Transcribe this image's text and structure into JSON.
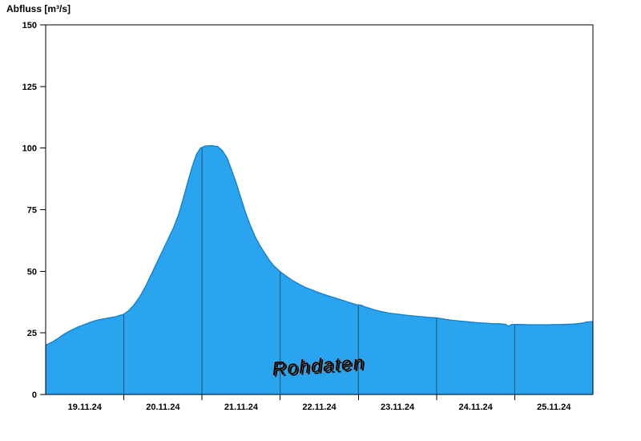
{
  "title": "Abfluss [m³/s]",
  "watermark": "Rohdaten",
  "colors": {
    "area_fill": "#2aa4ef",
    "area_stroke": "#0d7fd0",
    "boundary_line": "#1f4e79",
    "axis": "#000000",
    "watermark_fill": "#ffffff",
    "watermark_stroke": "#8f8f8f",
    "watermark_shadow": "rgba(90,90,90,0.55)"
  },
  "chart_data": {
    "type": "area",
    "title": "",
    "ylabel": "Abfluss [m³/s]",
    "xlabel": "",
    "x_unit": "days (19.11.24 00:00 = 0)",
    "x_domain": [
      0,
      7
    ],
    "ylim": [
      0,
      150
    ],
    "y_ticks": [
      0,
      25,
      50,
      75,
      100,
      125,
      150
    ],
    "day_boundaries": [
      1,
      2,
      3,
      4,
      5,
      6
    ],
    "x_tick_labels": [
      "19.11.24",
      "20.11.24",
      "21.11.24",
      "22.11.24",
      "23.11.24",
      "24.11.24",
      "25.11.24"
    ],
    "x_label_positions": [
      0.5,
      1.5,
      2.5,
      3.5,
      4.5,
      5.5,
      6.5
    ],
    "grid": "day-boundary vertical lines clipped to filled area",
    "legend": "none",
    "annotations": [
      "Rohdaten watermark centered near x=3.5 days, y≈10 m³/s, slightly rotated"
    ],
    "series": [
      {
        "name": "Abfluss Rohdaten",
        "points": [
          [
            0,
            20
          ],
          [
            0.08,
            21.2
          ],
          [
            0.16,
            22.8
          ],
          [
            0.24,
            24.6
          ],
          [
            0.32,
            26
          ],
          [
            0.4,
            27.2
          ],
          [
            0.48,
            28.2
          ],
          [
            0.56,
            29.2
          ],
          [
            0.64,
            30
          ],
          [
            0.72,
            30.6
          ],
          [
            0.8,
            31
          ],
          [
            0.9,
            31.6
          ],
          [
            1,
            32.6
          ],
          [
            1.06,
            34
          ],
          [
            1.12,
            36
          ],
          [
            1.2,
            39.5
          ],
          [
            1.28,
            44
          ],
          [
            1.34,
            48
          ],
          [
            1.4,
            52
          ],
          [
            1.46,
            56
          ],
          [
            1.52,
            60
          ],
          [
            1.58,
            64
          ],
          [
            1.64,
            68
          ],
          [
            1.7,
            73
          ],
          [
            1.76,
            79.5
          ],
          [
            1.82,
            86.5
          ],
          [
            1.88,
            93
          ],
          [
            1.93,
            97.5
          ],
          [
            1.98,
            100
          ],
          [
            2.04,
            100.8
          ],
          [
            2.12,
            101
          ],
          [
            2.2,
            100.6
          ],
          [
            2.26,
            99
          ],
          [
            2.32,
            96
          ],
          [
            2.38,
            91
          ],
          [
            2.44,
            85.5
          ],
          [
            2.5,
            79.5
          ],
          [
            2.56,
            73.5
          ],
          [
            2.62,
            68.5
          ],
          [
            2.68,
            64
          ],
          [
            2.74,
            60.5
          ],
          [
            2.8,
            57.5
          ],
          [
            2.86,
            54.5
          ],
          [
            2.92,
            52.2
          ],
          [
            3,
            49.8
          ],
          [
            3.08,
            48
          ],
          [
            3.16,
            46.2
          ],
          [
            3.24,
            44.8
          ],
          [
            3.32,
            43.5
          ],
          [
            3.4,
            42.5
          ],
          [
            3.5,
            41.3
          ],
          [
            3.6,
            40.2
          ],
          [
            3.7,
            39.2
          ],
          [
            3.8,
            38.2
          ],
          [
            3.9,
            37.2
          ],
          [
            3.98,
            36.4
          ],
          [
            4.04,
            36.2
          ],
          [
            4.08,
            35.6
          ],
          [
            4.12,
            35.2
          ],
          [
            4.2,
            34.4
          ],
          [
            4.3,
            33.6
          ],
          [
            4.4,
            33
          ],
          [
            4.5,
            32.6
          ],
          [
            4.6,
            32.2
          ],
          [
            4.7,
            31.9
          ],
          [
            4.8,
            31.6
          ],
          [
            4.9,
            31.3
          ],
          [
            5,
            31.1
          ],
          [
            5.1,
            30.6
          ],
          [
            5.2,
            30.1
          ],
          [
            5.3,
            29.8
          ],
          [
            5.4,
            29.5
          ],
          [
            5.5,
            29.2
          ],
          [
            5.6,
            29
          ],
          [
            5.7,
            28.8
          ],
          [
            5.8,
            28.7
          ],
          [
            5.88,
            28.5
          ],
          [
            5.92,
            27.7
          ],
          [
            5.96,
            28.4
          ],
          [
            6.05,
            28.4
          ],
          [
            6.2,
            28.3
          ],
          [
            6.4,
            28.3
          ],
          [
            6.6,
            28.4
          ],
          [
            6.75,
            28.6
          ],
          [
            6.85,
            28.9
          ],
          [
            6.92,
            29.4
          ],
          [
            7,
            29.6
          ]
        ]
      }
    ]
  }
}
